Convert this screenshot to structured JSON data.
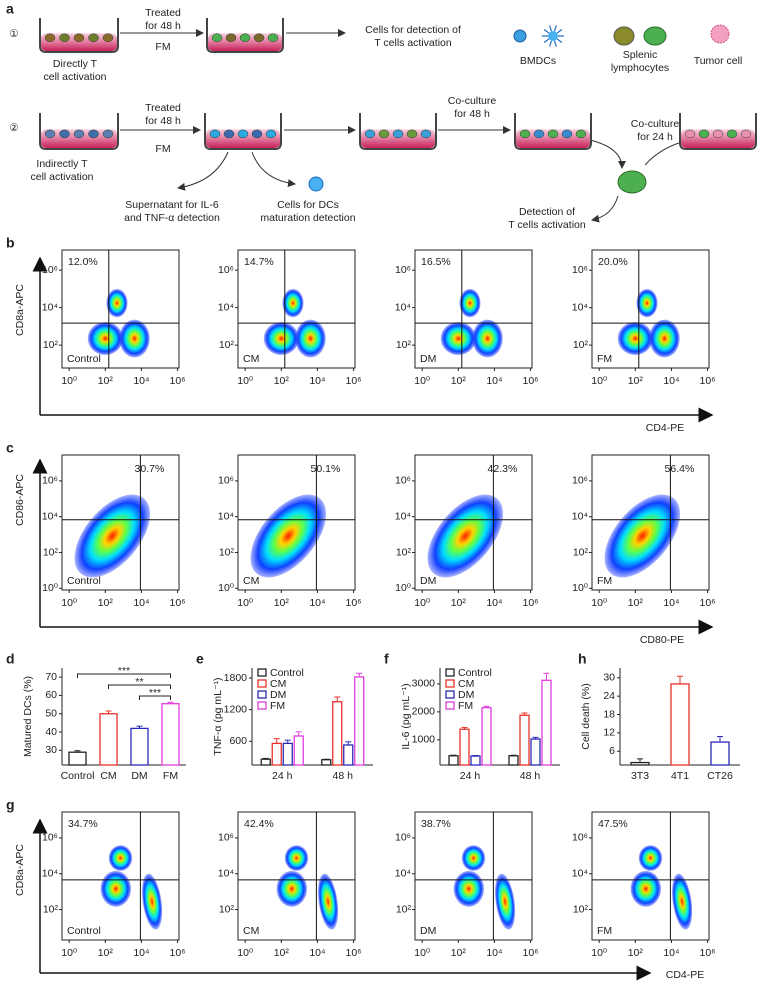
{
  "panel_a": {
    "label": "a",
    "route1": {
      "marker": "①",
      "step": [
        "Treated",
        "for 48 h"
      ],
      "agent": "FM",
      "start": [
        "Directly T",
        "cell activation"
      ],
      "end": [
        "Cells for detection of",
        "T cells activation"
      ]
    },
    "legend": [
      {
        "lines": [
          "BMDCs"
        ]
      },
      {
        "lines": [
          "Splenic",
          "lymphocytes"
        ]
      },
      {
        "lines": [
          "Tumor cell"
        ]
      }
    ],
    "route2": {
      "marker": "②",
      "step": [
        "Treated",
        "for 48 h"
      ],
      "agent": "FM",
      "start": [
        "Indirectly T",
        "cell activation"
      ],
      "supernatant": [
        "Supernatant for IL-6",
        "and TNF-α detection"
      ],
      "maturation": [
        "Cells for DCs",
        "maturation detection"
      ],
      "coculture1": [
        "Co-culture",
        "for 48 h"
      ],
      "coculture2": [
        "Co-culture",
        "for 24 h"
      ],
      "detection": [
        "Detection of",
        "T cells activation"
      ]
    }
  },
  "flow_rows": [
    {
      "label": "b",
      "ylabel": "CD8a-APC",
      "xlabel": "CD4-PE",
      "log_scale": true,
      "xlim": [
        0.4,
        1200000
      ],
      "ylim": [
        6,
        12000000
      ],
      "xticks": [
        {
          "value": 1,
          "label": "10⁰"
        },
        {
          "value": 100,
          "label": "10²"
        },
        {
          "value": 10000,
          "label": "10⁴"
        },
        {
          "value": 1000000,
          "label": "10⁶"
        }
      ],
      "yticks": [
        {
          "value": 100,
          "label": "10²"
        },
        {
          "value": 10000,
          "label": "10⁴"
        },
        {
          "value": 1000000,
          "label": "10⁶"
        }
      ],
      "plots": [
        {
          "name": "Control",
          "percent": "12.0%"
        },
        {
          "name": "CM",
          "percent": "14.7%"
        },
        {
          "name": "DM",
          "percent": "16.5%"
        },
        {
          "name": "FM",
          "percent": "20.0%"
        }
      ]
    },
    {
      "label": "c",
      "ylabel": "CD86-APC",
      "xlabel": "CD80-PE",
      "log_scale": true,
      "xlim": [
        0.4,
        1200000
      ],
      "ylim": [
        0.8,
        28000000
      ],
      "xticks": [
        {
          "value": 1,
          "label": "10⁰"
        },
        {
          "value": 100,
          "label": "10²"
        },
        {
          "value": 10000,
          "label": "10⁴"
        },
        {
          "value": 1000000,
          "label": "10⁶"
        }
      ],
      "yticks": [
        {
          "value": 1,
          "label": "10⁰"
        },
        {
          "value": 100,
          "label": "10²"
        },
        {
          "value": 10000,
          "label": "10⁴"
        },
        {
          "value": 1000000,
          "label": "10⁶"
        }
      ],
      "plots": [
        {
          "name": "Control",
          "percent": "30.7%"
        },
        {
          "name": "CM",
          "percent": "50.1%"
        },
        {
          "name": "DM",
          "percent": "42.3%"
        },
        {
          "name": "FM",
          "percent": "56.4%"
        }
      ]
    },
    {
      "label": "g",
      "ylabel": "CD8a-APC",
      "xlabel": "CD4-PE",
      "log_scale": true,
      "xlim": [
        0.4,
        1200000
      ],
      "ylim": [
        2,
        28000000
      ],
      "xticks": [
        {
          "value": 1,
          "label": "10⁰"
        },
        {
          "value": 100,
          "label": "10²"
        },
        {
          "value": 10000,
          "label": "10⁴"
        },
        {
          "value": 1000000,
          "label": "10⁶"
        }
      ],
      "yticks": [
        {
          "value": 100,
          "label": "10²"
        },
        {
          "value": 10000,
          "label": "10⁴"
        },
        {
          "value": 1000000,
          "label": "10⁶"
        }
      ],
      "plots": [
        {
          "name": "Control",
          "percent": "34.7%"
        },
        {
          "name": "CM",
          "percent": "42.4%"
        },
        {
          "name": "DM",
          "percent": "38.7%"
        },
        {
          "name": "FM",
          "percent": "47.5%"
        }
      ]
    }
  ],
  "chart_data": [
    {
      "type": "bar",
      "label": "d",
      "ylabel": "Matured DCs (%)",
      "categories": [
        "Control",
        "CM",
        "DM",
        "FM"
      ],
      "values": [
        29,
        50,
        42,
        55.5
      ],
      "errors": [
        0.8,
        1.5,
        1.2,
        0.8
      ],
      "colors": [
        "#222222",
        "#e8312a",
        "#2a2ab8",
        "#e23ce0"
      ],
      "ylim": [
        22,
        75
      ],
      "yticks": [
        30,
        40,
        50,
        60,
        70
      ],
      "significance": [
        "***",
        "**",
        "***"
      ]
    },
    {
      "type": "grouped_bar",
      "label": "e",
      "ylabel": "TNF-α (pg mL⁻¹)",
      "categories": [
        "24 h",
        "48 h"
      ],
      "series": [
        {
          "name": "Control",
          "color": "#222222",
          "values": [
            260,
            250
          ],
          "errors": [
            15,
            10
          ]
        },
        {
          "name": "CM",
          "color": "#e8312a",
          "values": [
            560,
            1350
          ],
          "errors": [
            90,
            90
          ]
        },
        {
          "name": "DM",
          "color": "#2a2ab8",
          "values": [
            560,
            530
          ],
          "errors": [
            60,
            60
          ]
        },
        {
          "name": "FM",
          "color": "#e23ce0",
          "values": [
            700,
            1820
          ],
          "errors": [
            80,
            70
          ]
        }
      ],
      "ylim": [
        150,
        1990
      ],
      "yticks": [
        600,
        1200,
        1800
      ]
    },
    {
      "type": "grouped_bar",
      "label": "f",
      "ylabel": "IL-6 (pg mL⁻¹)",
      "categories": [
        "24 h",
        "48 h"
      ],
      "series": [
        {
          "name": "Control",
          "color": "#222222",
          "values": [
            430,
            430
          ],
          "errors": [
            20,
            20
          ]
        },
        {
          "name": "CM",
          "color": "#e8312a",
          "values": [
            1380,
            1880
          ],
          "errors": [
            60,
            80
          ]
        },
        {
          "name": "DM",
          "color": "#2a2ab8",
          "values": [
            420,
            1030
          ],
          "errors": [
            20,
            60
          ]
        },
        {
          "name": "FM",
          "color": "#e23ce0",
          "values": [
            2150,
            3130
          ],
          "errors": [
            50,
            250
          ]
        }
      ],
      "ylim": [
        100,
        3570
      ],
      "yticks": [
        1000,
        2000,
        3000
      ]
    },
    {
      "type": "bar",
      "label": "h",
      "ylabel": "Cell death (%)",
      "categories": [
        "3T3",
        "4T1",
        "CT26"
      ],
      "values": [
        2.3,
        28,
        9
      ],
      "errors": [
        1.2,
        2.5,
        1.8
      ],
      "colors": [
        "#222222",
        "#e8312a",
        "#2a2ab8"
      ],
      "ylim": [
        1.5,
        33.2
      ],
      "yticks": [
        6,
        12,
        18,
        24,
        30
      ]
    }
  ]
}
